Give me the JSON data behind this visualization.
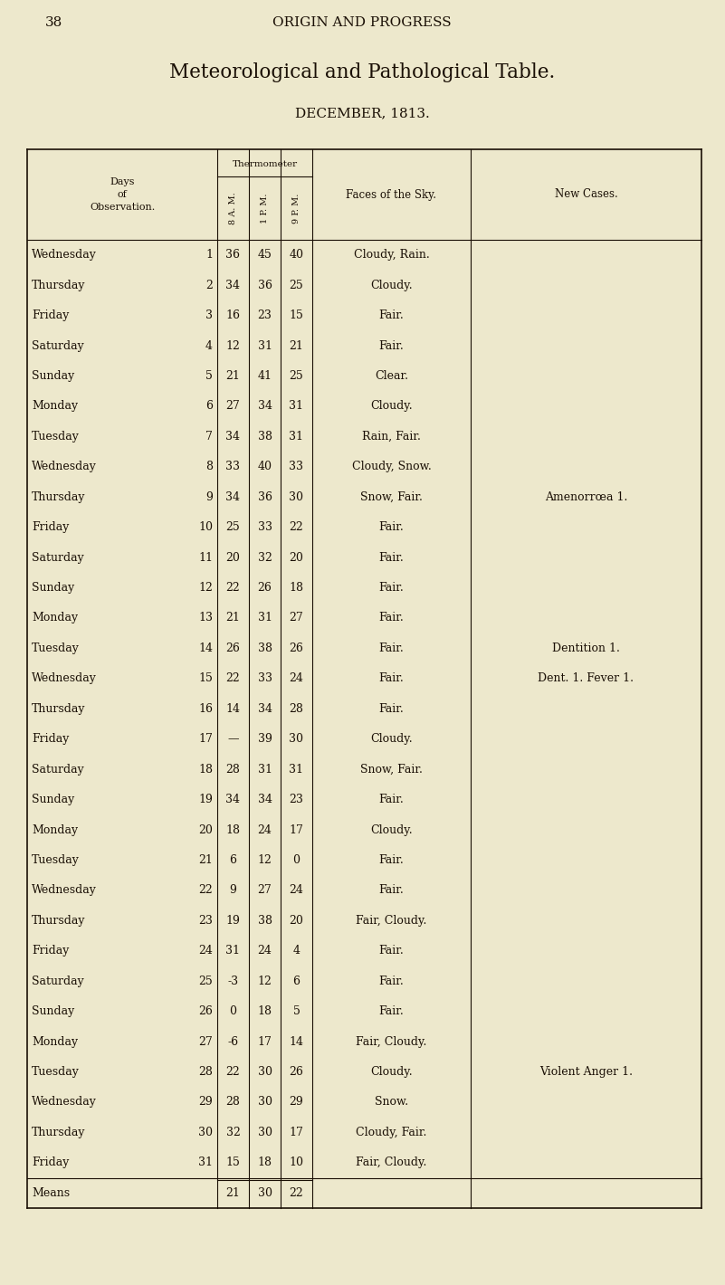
{
  "page_number": "38",
  "header": "ORIGIN AND PROGRESS",
  "title": "Meteorological and Pathological Table.",
  "subtitle": "DECEMBER, 1813.",
  "bg_color": "#ede8cc",
  "text_color": "#1a0f05",
  "rows": [
    [
      "Wednesday",
      "1",
      "36",
      "45",
      "40",
      "Cloudy, Rain.",
      ""
    ],
    [
      "Thursday",
      "2",
      "34",
      "36",
      "25",
      "Cloudy.",
      ""
    ],
    [
      "Friday",
      "3",
      "16",
      "23",
      "15",
      "Fair.",
      ""
    ],
    [
      "Saturday",
      "4",
      "12",
      "31",
      "21",
      "Fair.",
      ""
    ],
    [
      "Sunday",
      "5",
      "21",
      "41",
      "25",
      "Clear.",
      ""
    ],
    [
      "Monday",
      "6",
      "27",
      "34",
      "31",
      "Cloudy.",
      ""
    ],
    [
      "Tuesday",
      "7",
      "34",
      "38",
      "31",
      "Rain, Fair.",
      ""
    ],
    [
      "Wednesday",
      "8",
      "33",
      "40",
      "33",
      "Cloudy, Snow.",
      ""
    ],
    [
      "Thursday",
      "9",
      "34",
      "36",
      "30",
      "Snow, Fair.",
      "Amenorrœa 1."
    ],
    [
      "Friday",
      "10",
      "25",
      "33",
      "22",
      "Fair.",
      ""
    ],
    [
      "Saturday",
      "11",
      "20",
      "32",
      "20",
      "Fair.",
      ""
    ],
    [
      "Sunday",
      "12",
      "22",
      "26",
      "18",
      "Fair.",
      ""
    ],
    [
      "Monday",
      "13",
      "21",
      "31",
      "27",
      "Fair.",
      ""
    ],
    [
      "Tuesday",
      "14",
      "26",
      "38",
      "26",
      "Fair.",
      "Dentition 1."
    ],
    [
      "Wednesday",
      "15",
      "22",
      "33",
      "24",
      "Fair.",
      "Dent. 1. Fever 1."
    ],
    [
      "Thursday",
      "16",
      "14",
      "34",
      "28",
      "Fair.",
      ""
    ],
    [
      "Friday",
      "17",
      "—",
      "39",
      "30",
      "Cloudy.",
      ""
    ],
    [
      "Saturday",
      "18",
      "28",
      "31",
      "31",
      "Snow, Fair.",
      ""
    ],
    [
      "Sunday",
      "19",
      "34",
      "34",
      "23",
      "Fair.",
      ""
    ],
    [
      "Monday",
      "20",
      "18",
      "24",
      "17",
      "Cloudy.",
      ""
    ],
    [
      "Tuesday",
      "21",
      "6",
      "12",
      "0",
      "Fair.",
      ""
    ],
    [
      "Wednesday",
      "22",
      "9",
      "27",
      "24",
      "Fair.",
      ""
    ],
    [
      "Thursday",
      "23",
      "19",
      "38",
      "20",
      "Fair, Cloudy.",
      ""
    ],
    [
      "Friday",
      "24",
      "31",
      "24",
      "4",
      "Fair.",
      ""
    ],
    [
      "Saturday",
      "25",
      "-3",
      "12",
      "6",
      "Fair.",
      ""
    ],
    [
      "Sunday",
      "26",
      "0",
      "18",
      "5",
      "Fair.",
      ""
    ],
    [
      "Monday",
      "27",
      "-6",
      "17",
      "14",
      "Fair, Cloudy.",
      ""
    ],
    [
      "Tuesday",
      "28",
      "22",
      "30",
      "26",
      "Cloudy.",
      "Violent Anger 1."
    ],
    [
      "Wednesday",
      "29",
      "28",
      "30",
      "29",
      "Snow.",
      ""
    ],
    [
      "Thursday",
      "30",
      "32",
      "30",
      "17",
      "Cloudy, Fair.",
      ""
    ],
    [
      "Friday",
      "31",
      "15",
      "18",
      "10",
      "Fair, Cloudy.",
      ""
    ],
    [
      "Means",
      "",
      "21",
      "30",
      "22",
      "",
      ""
    ]
  ]
}
